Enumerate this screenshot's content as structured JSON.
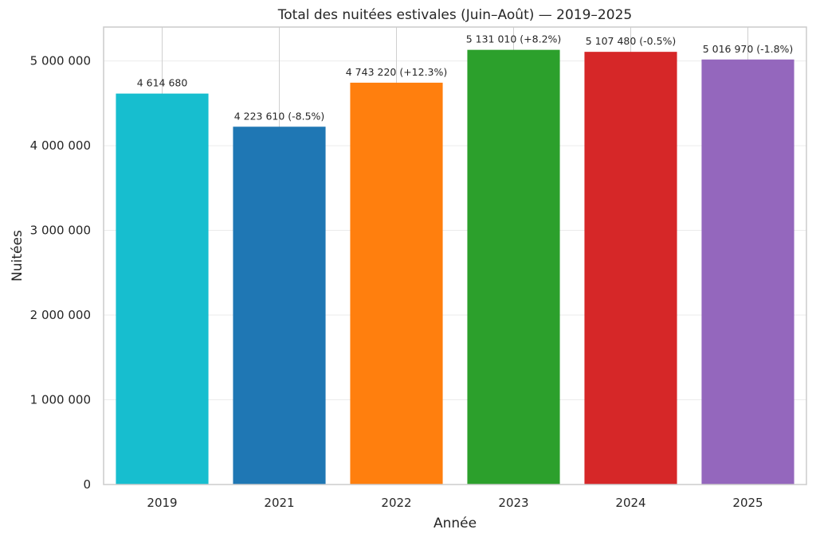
{
  "chart_data": {
    "type": "bar",
    "title": "Total des nuitées estivales (Juin–Août) — 2019–2025",
    "xlabel": "Année",
    "ylabel": "Nuitées",
    "categories": [
      "2019",
      "2021",
      "2022",
      "2023",
      "2024",
      "2025"
    ],
    "values": [
      4614680,
      4223610,
      4743220,
      5131010,
      5107480,
      5016970
    ],
    "data_labels": [
      "4 614 680",
      "4 223 610 (-8.5%)",
      "4 743 220 (+12.3%)",
      "5 131 010 (+8.2%)",
      "5 107 480 (-0.5%)",
      "5 016 970 (-1.8%)"
    ],
    "colors": [
      "#17becf",
      "#1f77b4",
      "#ff7f0e",
      "#2ca02c",
      "#d62728",
      "#9467bd"
    ],
    "ylim": [
      0,
      5400000
    ],
    "yticks": [
      0,
      1000000,
      2000000,
      3000000,
      4000000,
      5000000
    ],
    "ytick_labels": [
      "0",
      "1 000 000",
      "2 000 000",
      "3 000 000",
      "4 000 000",
      "5 000 000"
    ],
    "grid": true,
    "grid_color": "#ebebeb",
    "axis_color": "#cccccc"
  }
}
